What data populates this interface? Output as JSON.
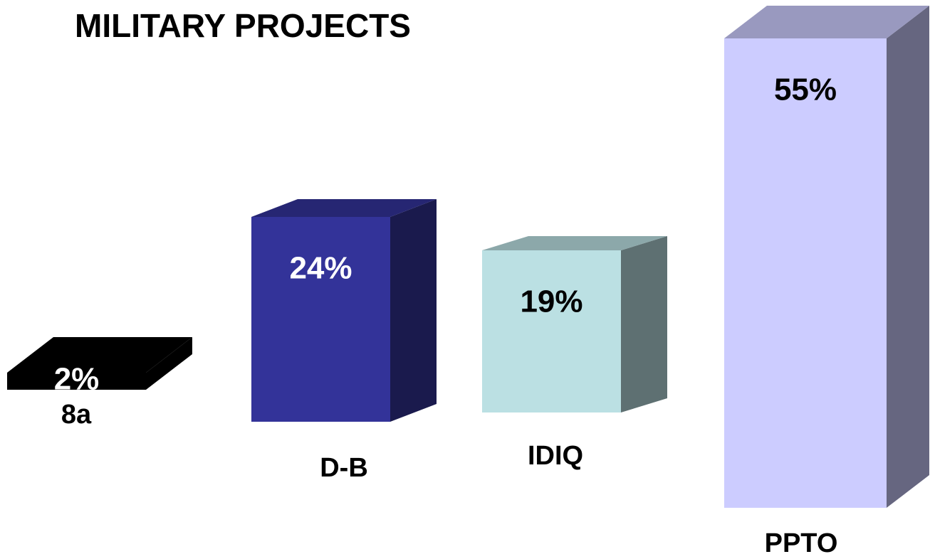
{
  "chart_data": {
    "type": "bar3d",
    "title": "MILITARY PROJECTS",
    "categories": [
      "8a",
      "D-B",
      "IDIQ",
      "PPTO"
    ],
    "values": [
      2,
      24,
      19,
      55
    ],
    "value_labels": [
      "2%",
      "24%",
      "19%",
      "55%"
    ],
    "colors": [
      "#000000",
      "#333399",
      "#bbe0e3",
      "#ccccff"
    ]
  }
}
